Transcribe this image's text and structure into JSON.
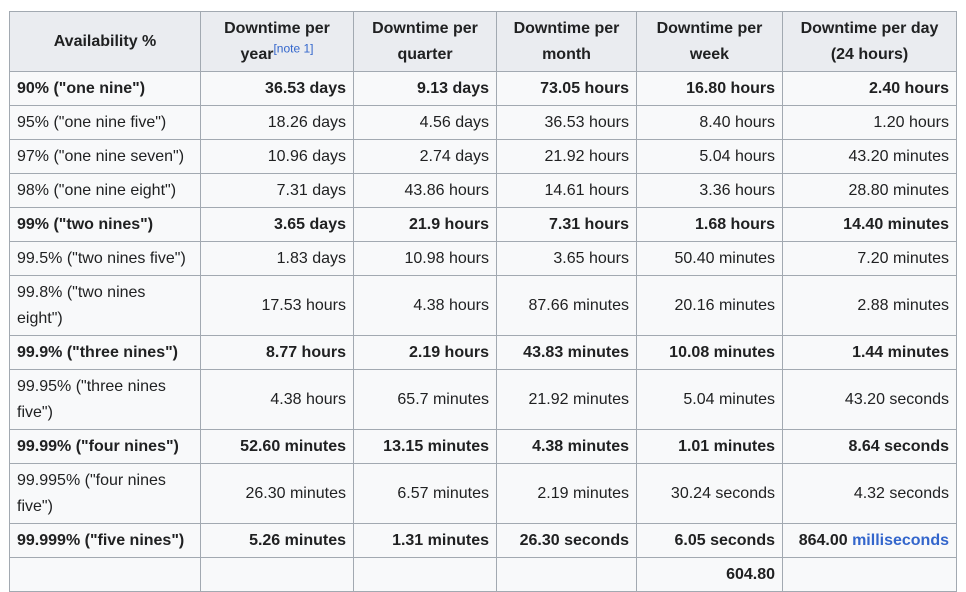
{
  "table": {
    "headers": {
      "availability": "Availability %",
      "year": "Downtime per year",
      "year_note": "[note 1]",
      "quarter": "Downtime per quarter",
      "month": "Downtime per month",
      "week": "Downtime per week",
      "day": "Downtime per day (24 hours)"
    },
    "rows": [
      {
        "availability": "90% (\"one nine\")",
        "year": "36.53 days",
        "quarter": "9.13 days",
        "month": "73.05 hours",
        "week": "16.80 hours",
        "day": "2.40 hours"
      },
      {
        "availability": "95% (\"one nine five\")",
        "year": "18.26 days",
        "quarter": "4.56 days",
        "month": "36.53 hours",
        "week": "8.40 hours",
        "day": "1.20 hours"
      },
      {
        "availability": "97% (\"one nine seven\")",
        "year": "10.96 days",
        "quarter": "2.74 days",
        "month": "21.92 hours",
        "week": "5.04 hours",
        "day": "43.20 minutes"
      },
      {
        "availability": "98% (\"one nine eight\")",
        "year": "7.31 days",
        "quarter": "43.86 hours",
        "month": "14.61 hours",
        "week": "3.36 hours",
        "day": "28.80 minutes"
      },
      {
        "availability": "99% (\"two nines\")",
        "year": "3.65 days",
        "quarter": "21.9 hours",
        "month": "7.31 hours",
        "week": "1.68 hours",
        "day": "14.40 minutes"
      },
      {
        "availability": "99.5% (\"two nines five\")",
        "year": "1.83 days",
        "quarter": "10.98 hours",
        "month": "3.65 hours",
        "week": "50.40 minutes",
        "day": "7.20 minutes"
      },
      {
        "availability": "99.8% (\"two nines eight\")",
        "year": "17.53 hours",
        "quarter": "4.38 hours",
        "month": "87.66 minutes",
        "week": "20.16 minutes",
        "day": "2.88 minutes"
      },
      {
        "availability": "99.9% (\"three nines\")",
        "year": "8.77 hours",
        "quarter": "2.19 hours",
        "month": "43.83 minutes",
        "week": "10.08 minutes",
        "day": "1.44 minutes"
      },
      {
        "availability": "99.95% (\"three nines five\")",
        "year": "4.38 hours",
        "quarter": "65.7 minutes",
        "month": "21.92 minutes",
        "week": "5.04 minutes",
        "day": "43.20 seconds"
      },
      {
        "availability": "99.99% (\"four nines\")",
        "year": "52.60 minutes",
        "quarter": "13.15 minutes",
        "month": "4.38 minutes",
        "week": "1.01 minutes",
        "day": "8.64 seconds"
      },
      {
        "availability": "99.995% (\"four nines five\")",
        "year": "26.30 minutes",
        "quarter": "6.57 minutes",
        "month": "2.19 minutes",
        "week": "30.24 seconds",
        "day": "4.32 seconds"
      },
      {
        "availability": "99.999% (\"five nines\")",
        "year": "5.26 minutes",
        "quarter": "1.31 minutes",
        "month": "26.30 seconds",
        "week": "6.05 seconds",
        "day_value": "864.00",
        "day_link": "milliseconds"
      },
      {
        "availability": "",
        "year": "",
        "quarter": "",
        "month": "",
        "week": "604.80",
        "day": ""
      }
    ]
  }
}
